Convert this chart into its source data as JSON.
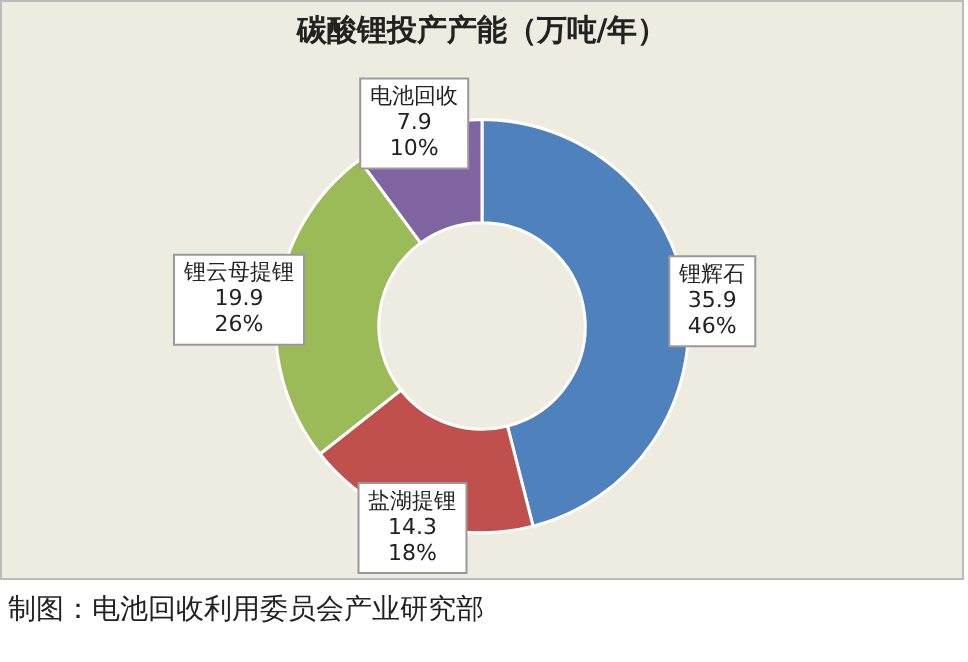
{
  "chart_data": {
    "type": "donut",
    "title": "碳酸锂投产产能（万吨/年）",
    "categories": [
      "锂辉石",
      "盐湖提锂",
      "锂云母提锂",
      "电池回收"
    ],
    "values": [
      35.9,
      14.3,
      19.9,
      7.9
    ],
    "colors": [
      "#4f81bd",
      "#c0504d",
      "#9bbb59",
      "#8064a2"
    ],
    "value_labels": [
      "35.9\n46%",
      "14.3\n18%",
      "19.9\n26%",
      "7.9\n10%"
    ],
    "legend": false,
    "annotations": [
      "制图：电池回收利用委员会产业研究部"
    ]
  }
}
